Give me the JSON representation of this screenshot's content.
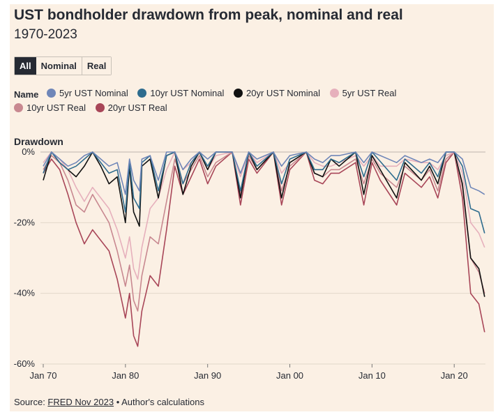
{
  "header": {
    "title": "UST bondholder drawdown from peak, nominal and real",
    "subtitle": "1970-2023"
  },
  "toggle": {
    "options": [
      "All",
      "Nominal",
      "Real"
    ],
    "selected": "All"
  },
  "legend": {
    "title": "Name"
  },
  "footer": {
    "source_prefix": "Source: ",
    "source_link": "FRED Nov 2023",
    "source_suffix": " • Author's calculations"
  },
  "chart_data": {
    "type": "line",
    "ylabel": "Drawdown",
    "ylim": [
      -60,
      0
    ],
    "y_ticks": [
      0,
      -20,
      -40,
      -60
    ],
    "y_tick_labels": [
      "0%",
      "-20%",
      "-40%",
      "-60%"
    ],
    "xlim": [
      1970,
      2023.8
    ],
    "x_ticks": [
      1970,
      1980,
      1990,
      2000,
      2010,
      2020
    ],
    "x_tick_labels": [
      "Jan 70",
      "Jan 80",
      "Jan 90",
      "Jan 00",
      "Jan 10",
      "Jan 20"
    ],
    "grid": "horizontal",
    "legend_position": "top",
    "series": [
      {
        "name": "5yr UST Nominal",
        "color": "#6f86b8",
        "points": [
          [
            1970,
            -4
          ],
          [
            1971,
            0
          ],
          [
            1972,
            -2
          ],
          [
            1973,
            -4
          ],
          [
            1974,
            -3
          ],
          [
            1975,
            -1
          ],
          [
            1976,
            0
          ],
          [
            1977,
            -2
          ],
          [
            1978,
            -4
          ],
          [
            1979,
            -3
          ],
          [
            1980,
            -12
          ],
          [
            1980.5,
            -2
          ],
          [
            1981,
            -8
          ],
          [
            1981.7,
            -11
          ],
          [
            1982,
            -2
          ],
          [
            1983,
            -1
          ],
          [
            1984,
            -8
          ],
          [
            1985,
            0
          ],
          [
            1986,
            0
          ],
          [
            1987,
            -5
          ],
          [
            1988,
            -2
          ],
          [
            1989,
            0
          ],
          [
            1990,
            -2
          ],
          [
            1991,
            0
          ],
          [
            1993,
            0
          ],
          [
            1994,
            -6
          ],
          [
            1995,
            0
          ],
          [
            1996,
            -2
          ],
          [
            1998,
            0
          ],
          [
            1999,
            -4
          ],
          [
            2000,
            -1
          ],
          [
            2002,
            0
          ],
          [
            2003,
            -2
          ],
          [
            2004,
            -3
          ],
          [
            2005,
            -1
          ],
          [
            2006,
            -1
          ],
          [
            2008,
            0
          ],
          [
            2009,
            -3
          ],
          [
            2010,
            0
          ],
          [
            2013,
            -3
          ],
          [
            2014,
            -1
          ],
          [
            2016,
            -3
          ],
          [
            2017,
            -2
          ],
          [
            2018,
            -3
          ],
          [
            2019,
            0
          ],
          [
            2020,
            0
          ],
          [
            2021,
            -2
          ],
          [
            2022,
            -10
          ],
          [
            2023,
            -11
          ],
          [
            2023.7,
            -12
          ]
        ]
      },
      {
        "name": "10yr UST Nominal",
        "color": "#2e6c8e",
        "points": [
          [
            1970,
            -6
          ],
          [
            1971,
            0
          ],
          [
            1972,
            -3
          ],
          [
            1973,
            -5
          ],
          [
            1974,
            -4
          ],
          [
            1975,
            -2
          ],
          [
            1976,
            0
          ],
          [
            1977,
            -3
          ],
          [
            1978,
            -6
          ],
          [
            1979,
            -5
          ],
          [
            1980,
            -17
          ],
          [
            1980.5,
            -3
          ],
          [
            1981,
            -13
          ],
          [
            1981.7,
            -16
          ],
          [
            1982,
            -3
          ],
          [
            1983,
            -1
          ],
          [
            1984,
            -11
          ],
          [
            1985,
            -1
          ],
          [
            1986,
            0
          ],
          [
            1987,
            -9
          ],
          [
            1988,
            -3
          ],
          [
            1989,
            0
          ],
          [
            1990,
            -4
          ],
          [
            1991,
            0
          ],
          [
            1993,
            0
          ],
          [
            1994,
            -11
          ],
          [
            1995,
            0
          ],
          [
            1996,
            -4
          ],
          [
            1998,
            0
          ],
          [
            1999,
            -9
          ],
          [
            2000,
            -2
          ],
          [
            2002,
            0
          ],
          [
            2003,
            -5
          ],
          [
            2004,
            -5
          ],
          [
            2005,
            -2
          ],
          [
            2006,
            -3
          ],
          [
            2008,
            0
          ],
          [
            2009,
            -7
          ],
          [
            2010,
            0
          ],
          [
            2013,
            -8
          ],
          [
            2014,
            -2
          ],
          [
            2016,
            -6
          ],
          [
            2017,
            -3
          ],
          [
            2018,
            -7
          ],
          [
            2019,
            0
          ],
          [
            2020,
            0
          ],
          [
            2021,
            -4
          ],
          [
            2022,
            -16
          ],
          [
            2023,
            -17
          ],
          [
            2023.7,
            -23
          ]
        ]
      },
      {
        "name": "20yr UST Nominal",
        "color": "#111111",
        "points": [
          [
            1970,
            -8
          ],
          [
            1971,
            0
          ],
          [
            1972,
            -3
          ],
          [
            1973,
            -5
          ],
          [
            1974,
            -7
          ],
          [
            1975,
            -4
          ],
          [
            1976,
            0
          ],
          [
            1977,
            -4
          ],
          [
            1978,
            -9
          ],
          [
            1979,
            -7
          ],
          [
            1980,
            -20
          ],
          [
            1980.5,
            -4
          ],
          [
            1981,
            -17
          ],
          [
            1981.7,
            -21
          ],
          [
            1982,
            -4
          ],
          [
            1983,
            -2
          ],
          [
            1984,
            -13
          ],
          [
            1985,
            -1
          ],
          [
            1986,
            0
          ],
          [
            1987,
            -12
          ],
          [
            1988,
            -4
          ],
          [
            1989,
            0
          ],
          [
            1990,
            -5
          ],
          [
            1991,
            0
          ],
          [
            1993,
            0
          ],
          [
            1994,
            -13
          ],
          [
            1995,
            0
          ],
          [
            1996,
            -5
          ],
          [
            1998,
            0
          ],
          [
            1999,
            -13
          ],
          [
            2000,
            -3
          ],
          [
            2002,
            0
          ],
          [
            2003,
            -6
          ],
          [
            2004,
            -7
          ],
          [
            2005,
            -2
          ],
          [
            2006,
            -4
          ],
          [
            2008,
            0
          ],
          [
            2009,
            -12
          ],
          [
            2010,
            -1
          ],
          [
            2013,
            -13
          ],
          [
            2014,
            -3
          ],
          [
            2016,
            -8
          ],
          [
            2017,
            -4
          ],
          [
            2018,
            -9
          ],
          [
            2019,
            0
          ],
          [
            2020,
            0
          ],
          [
            2021,
            -9
          ],
          [
            2022,
            -30
          ],
          [
            2023,
            -33
          ],
          [
            2023.7,
            -41
          ]
        ]
      },
      {
        "name": "5yr UST Real",
        "color": "#e6b0bc",
        "points": [
          [
            1970,
            -3
          ],
          [
            1971,
            0
          ],
          [
            1972,
            -2
          ],
          [
            1973,
            -5
          ],
          [
            1974,
            -10
          ],
          [
            1975,
            -14
          ],
          [
            1976,
            -10
          ],
          [
            1977,
            -13
          ],
          [
            1978,
            -16
          ],
          [
            1979,
            -22
          ],
          [
            1980,
            -30
          ],
          [
            1980.5,
            -24
          ],
          [
            1981,
            -33
          ],
          [
            1981.5,
            -36
          ],
          [
            1982,
            -27
          ],
          [
            1983,
            -16
          ],
          [
            1984,
            -13
          ],
          [
            1985,
            -5
          ],
          [
            1986,
            0
          ],
          [
            1987,
            -5
          ],
          [
            1988,
            -3
          ],
          [
            1989,
            0
          ],
          [
            1990,
            -5
          ],
          [
            1991,
            -1
          ],
          [
            1993,
            0
          ],
          [
            1994,
            -7
          ],
          [
            1995,
            0
          ],
          [
            1996,
            -3
          ],
          [
            1998,
            0
          ],
          [
            1999,
            -6
          ],
          [
            2000,
            -3
          ],
          [
            2002,
            0
          ],
          [
            2003,
            -3
          ],
          [
            2004,
            -4
          ],
          [
            2005,
            -4
          ],
          [
            2006,
            -3
          ],
          [
            2008,
            -1
          ],
          [
            2009,
            -4
          ],
          [
            2010,
            -1
          ],
          [
            2011,
            -4
          ],
          [
            2013,
            -4
          ],
          [
            2014,
            -2
          ],
          [
            2016,
            -3
          ],
          [
            2017,
            -3
          ],
          [
            2018,
            -5
          ],
          [
            2019,
            -1
          ],
          [
            2020,
            0
          ],
          [
            2021,
            -6
          ],
          [
            2022,
            -20
          ],
          [
            2023,
            -23
          ],
          [
            2023.7,
            -27
          ]
        ]
      },
      {
        "name": "10yr UST Real",
        "color": "#c88890",
        "points": [
          [
            1970,
            -5
          ],
          [
            1971,
            -1
          ],
          [
            1972,
            -3
          ],
          [
            1973,
            -8
          ],
          [
            1974,
            -15
          ],
          [
            1975,
            -17
          ],
          [
            1976,
            -12
          ],
          [
            1977,
            -16
          ],
          [
            1978,
            -20
          ],
          [
            1979,
            -28
          ],
          [
            1980,
            -38
          ],
          [
            1980.5,
            -32
          ],
          [
            1981,
            -42
          ],
          [
            1981.5,
            -45
          ],
          [
            1982,
            -35
          ],
          [
            1983,
            -24
          ],
          [
            1984,
            -26
          ],
          [
            1985,
            -14
          ],
          [
            1986,
            -2
          ],
          [
            1987,
            -9
          ],
          [
            1988,
            -5
          ],
          [
            1989,
            -1
          ],
          [
            1990,
            -7
          ],
          [
            1991,
            -3
          ],
          [
            1993,
            0
          ],
          [
            1994,
            -12
          ],
          [
            1995,
            -1
          ],
          [
            1996,
            -5
          ],
          [
            1998,
            0
          ],
          [
            1999,
            -11
          ],
          [
            2000,
            -4
          ],
          [
            2002,
            0
          ],
          [
            2003,
            -6
          ],
          [
            2004,
            -7
          ],
          [
            2005,
            -5
          ],
          [
            2006,
            -5
          ],
          [
            2008,
            -2
          ],
          [
            2009,
            -9
          ],
          [
            2010,
            -2
          ],
          [
            2011,
            -6
          ],
          [
            2013,
            -10
          ],
          [
            2014,
            -4
          ],
          [
            2016,
            -8
          ],
          [
            2017,
            -5
          ],
          [
            2018,
            -11
          ],
          [
            2019,
            -2
          ],
          [
            2020,
            0
          ],
          [
            2021,
            -10
          ],
          [
            2022,
            -30
          ],
          [
            2023,
            -34
          ],
          [
            2023.7,
            -40
          ]
        ]
      },
      {
        "name": "20yr UST Real",
        "color": "#a84658",
        "points": [
          [
            1970,
            -6
          ],
          [
            1971,
            -2
          ],
          [
            1972,
            -5
          ],
          [
            1973,
            -12
          ],
          [
            1974,
            -20
          ],
          [
            1975,
            -26
          ],
          [
            1976,
            -22
          ],
          [
            1977,
            -25
          ],
          [
            1978,
            -28
          ],
          [
            1979,
            -36
          ],
          [
            1980,
            -47
          ],
          [
            1980.5,
            -40
          ],
          [
            1981,
            -52
          ],
          [
            1981.5,
            -55
          ],
          [
            1982,
            -45
          ],
          [
            1983,
            -35
          ],
          [
            1984,
            -38
          ],
          [
            1985,
            -22
          ],
          [
            1986,
            -4
          ],
          [
            1987,
            -12
          ],
          [
            1988,
            -7
          ],
          [
            1989,
            -2
          ],
          [
            1990,
            -9
          ],
          [
            1991,
            -4
          ],
          [
            1993,
            0
          ],
          [
            1994,
            -15
          ],
          [
            1995,
            -2
          ],
          [
            1996,
            -6
          ],
          [
            1998,
            0
          ],
          [
            1999,
            -15
          ],
          [
            2000,
            -5
          ],
          [
            2002,
            0
          ],
          [
            2003,
            -8
          ],
          [
            2004,
            -9
          ],
          [
            2005,
            -6
          ],
          [
            2006,
            -6
          ],
          [
            2008,
            -3
          ],
          [
            2009,
            -15
          ],
          [
            2010,
            -3
          ],
          [
            2011,
            -8
          ],
          [
            2013,
            -15
          ],
          [
            2014,
            -6
          ],
          [
            2016,
            -10
          ],
          [
            2017,
            -7
          ],
          [
            2018,
            -13
          ],
          [
            2019,
            -3
          ],
          [
            2020,
            0
          ],
          [
            2021,
            -13
          ],
          [
            2022,
            -40
          ],
          [
            2023,
            -43
          ],
          [
            2023.7,
            -51
          ]
        ]
      }
    ]
  }
}
